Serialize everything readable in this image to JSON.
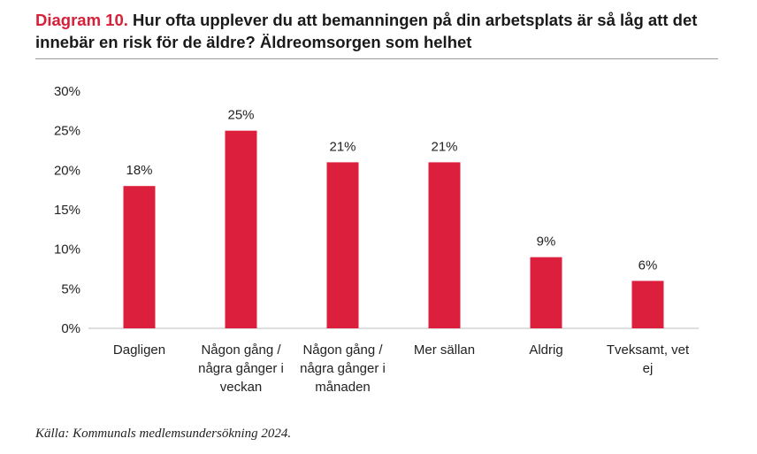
{
  "header": {
    "title_prefix": "Diagram 10.",
    "title_text": "Hur ofta upplever du att bemanningen på din arbetsplats är så låg att det innebär en risk för de äldre? Äldreomsorgen som helhet"
  },
  "footer": {
    "source": "Källa: Kommunals medlemsundersökning 2024."
  },
  "colors": {
    "accent": "#d7213b",
    "bar": "#dc1f3c",
    "axis": "#bdbdbd",
    "text": "#222222"
  },
  "chart_data": {
    "type": "bar",
    "title": "Hur ofta upplever du att bemanningen på din arbetsplats är så låg att det innebär en risk för de äldre? Äldreomsorgen som helhet",
    "xlabel": "",
    "ylabel": "",
    "categories": [
      [
        "Dagligen"
      ],
      [
        "Någon gång /",
        "några gånger i",
        "veckan"
      ],
      [
        "Någon gång /",
        "några gånger i",
        "månaden"
      ],
      [
        "Mer sällan"
      ],
      [
        "Aldrig"
      ],
      [
        "Tveksamt, vet",
        "ej"
      ]
    ],
    "values": [
      18,
      25,
      21,
      21,
      9,
      6
    ],
    "value_labels": [
      "18%",
      "25%",
      "21%",
      "21%",
      "9%",
      "6%"
    ],
    "ylim": [
      0,
      30
    ],
    "yticks": [
      0,
      5,
      10,
      15,
      20,
      25,
      30
    ],
    "ytick_labels": [
      "0%",
      "5%",
      "10%",
      "15%",
      "20%",
      "25%",
      "30%"
    ],
    "grid": false,
    "legend": "none"
  }
}
